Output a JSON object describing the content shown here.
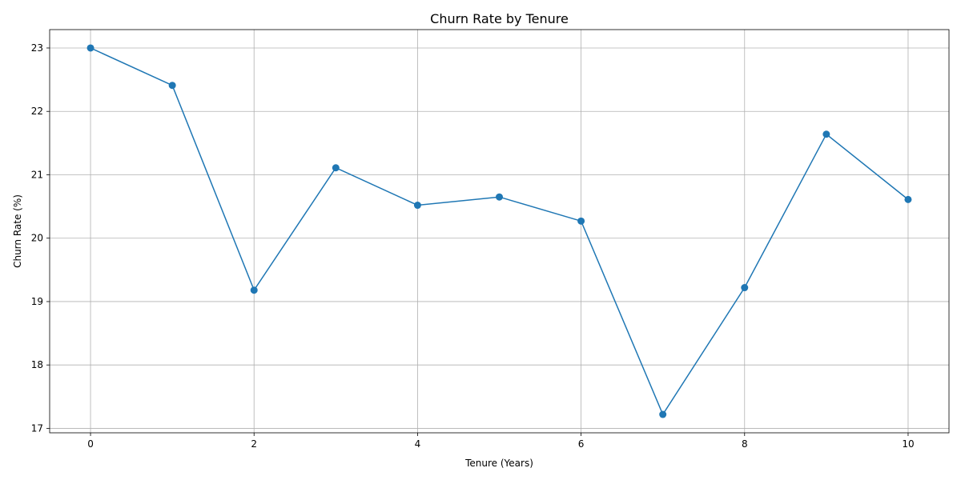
{
  "chart_data": {
    "type": "line",
    "title": "Churn Rate by Tenure",
    "xlabel": "Tenure (Years)",
    "ylabel": "Churn Rate (%)",
    "x": [
      0,
      1,
      2,
      3,
      4,
      5,
      6,
      7,
      8,
      9,
      10
    ],
    "series": [
      {
        "values": [
          23.0,
          22.41,
          19.18,
          21.11,
          20.52,
          20.65,
          20.27,
          17.22,
          19.22,
          21.64,
          20.61
        ],
        "color": "#1f77b4",
        "marker": "circle"
      }
    ],
    "xlim": [
      -0.5,
      10.5
    ],
    "ylim": [
      16.93,
      23.29
    ],
    "xticks": [
      0,
      2,
      4,
      6,
      8,
      10
    ],
    "yticks": [
      17,
      18,
      19,
      20,
      21,
      22,
      23
    ],
    "grid": true
  }
}
